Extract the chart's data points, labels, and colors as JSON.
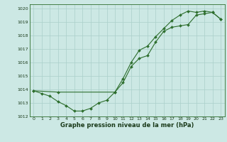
{
  "xlabel": "Graphe pression niveau de la mer (hPa)",
  "bg_color": "#cce8e4",
  "grid_color": "#aacfca",
  "line_color": "#2d6e2d",
  "xlim": [
    -0.5,
    23.5
  ],
  "ylim": [
    1012,
    1020.3
  ],
  "yticks": [
    1012,
    1013,
    1014,
    1015,
    1016,
    1017,
    1018,
    1019,
    1020
  ],
  "xticks": [
    0,
    1,
    2,
    3,
    4,
    5,
    6,
    7,
    8,
    9,
    10,
    11,
    12,
    13,
    14,
    15,
    16,
    17,
    18,
    19,
    20,
    21,
    22,
    23
  ],
  "series1_x": [
    0,
    1,
    2,
    3,
    4,
    5,
    6,
    7,
    8,
    9,
    10,
    11,
    12,
    13,
    14,
    15,
    16,
    17,
    18,
    19,
    20,
    21,
    22,
    23
  ],
  "series1_y": [
    1013.9,
    1013.7,
    1013.5,
    1013.1,
    1012.8,
    1012.4,
    1012.4,
    1012.6,
    1013.0,
    1013.2,
    1013.8,
    1014.5,
    1015.7,
    1016.3,
    1016.5,
    1017.5,
    1018.3,
    1018.6,
    1018.7,
    1018.8,
    1019.5,
    1019.6,
    1019.7,
    1019.2
  ],
  "series2_x": [
    0,
    3,
    10,
    11,
    12,
    13,
    14,
    15,
    16,
    17,
    18,
    19,
    20,
    21,
    22,
    23
  ],
  "series2_y": [
    1013.9,
    1013.8,
    1013.8,
    1014.8,
    1016.0,
    1016.9,
    1017.2,
    1017.9,
    1018.5,
    1019.1,
    1019.5,
    1019.8,
    1019.7,
    1019.8,
    1019.7,
    1019.2
  ],
  "ylabel_fontsize": 5.5,
  "xlabel_fontsize": 6.0,
  "tick_labelsize": 4.5
}
